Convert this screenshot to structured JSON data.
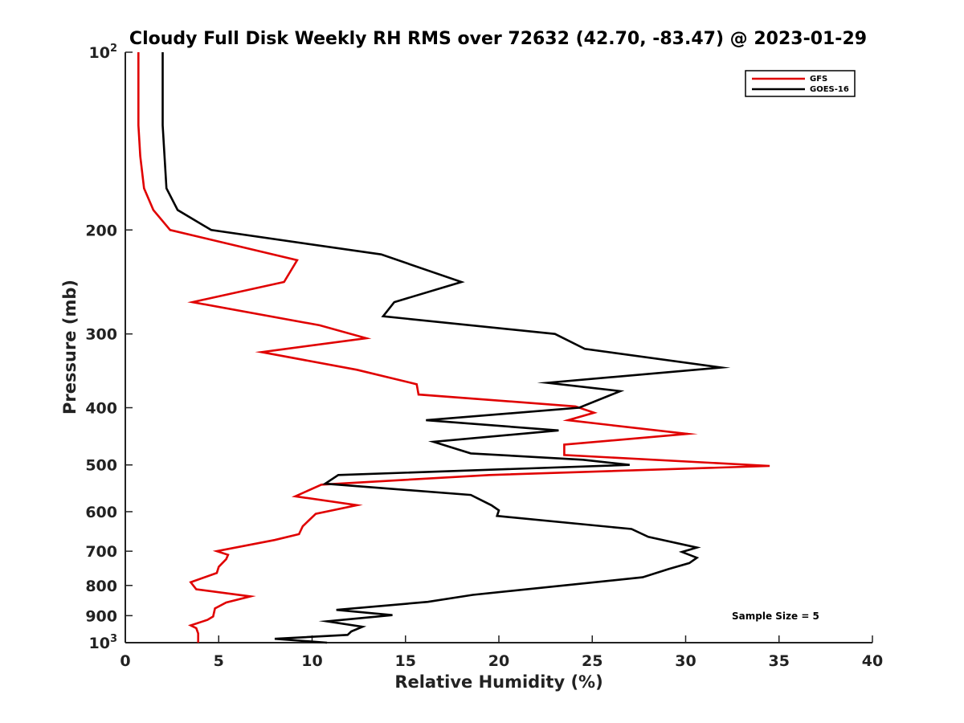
{
  "chart_data": {
    "type": "line",
    "title": "Cloudy Full Disk Weekly RH RMS over 72632 (42.70, -83.47) @ 2023-01-29",
    "xlabel": "Relative Humidity (%)",
    "ylabel": "Pressure (mb)",
    "xlim": [
      0,
      40
    ],
    "ylim": [
      100,
      1000
    ],
    "y_scale": "log",
    "y_inverted": true,
    "grid": false,
    "legend_position": "top-right",
    "x_ticks": [
      "0",
      "5",
      "10",
      "15",
      "20",
      "25",
      "30",
      "35",
      "40"
    ],
    "y_ticks": [
      {
        "value": 100,
        "base": "10",
        "exp": "2"
      },
      {
        "value": 200,
        "label": "200"
      },
      {
        "value": 300,
        "label": "300"
      },
      {
        "value": 400,
        "label": "400"
      },
      {
        "value": 500,
        "label": "500"
      },
      {
        "value": 600,
        "label": "600"
      },
      {
        "value": 700,
        "label": "700"
      },
      {
        "value": 800,
        "label": "800"
      },
      {
        "value": 900,
        "label": "900"
      },
      {
        "value": 1000,
        "base": "10",
        "exp": "3"
      }
    ],
    "annotation": "Sample Size = 5",
    "series": [
      {
        "name": "GFS",
        "color": "#e00000",
        "points": [
          [
            0.7,
            100
          ],
          [
            0.7,
            115
          ],
          [
            0.7,
            133
          ],
          [
            0.8,
            150
          ],
          [
            1.0,
            170
          ],
          [
            1.5,
            185
          ],
          [
            2.4,
            200
          ],
          [
            9.2,
            225
          ],
          [
            8.5,
            245
          ],
          [
            3.6,
            265
          ],
          [
            10.4,
            290
          ],
          [
            12.9,
            305
          ],
          [
            7.3,
            322
          ],
          [
            12.4,
            345
          ],
          [
            15.6,
            365
          ],
          [
            15.7,
            380
          ],
          [
            24.1,
            398
          ],
          [
            25.1,
            408
          ],
          [
            23.7,
            420
          ],
          [
            30.1,
            443
          ],
          [
            23.5,
            462
          ],
          [
            23.5,
            481
          ],
          [
            34.5,
            502
          ],
          [
            19.5,
            520
          ],
          [
            10.5,
            540
          ],
          [
            9.1,
            565
          ],
          [
            12.4,
            585
          ],
          [
            10.2,
            605
          ],
          [
            9.5,
            635
          ],
          [
            9.3,
            655
          ],
          [
            8.0,
            670
          ],
          [
            4.9,
            700
          ],
          [
            5.5,
            710
          ],
          [
            5.4,
            722
          ],
          [
            5.0,
            744
          ],
          [
            4.9,
            762
          ],
          [
            3.5,
            790
          ],
          [
            3.8,
            812
          ],
          [
            6.7,
            835
          ],
          [
            5.4,
            855
          ],
          [
            4.8,
            875
          ],
          [
            4.7,
            903
          ],
          [
            4.4,
            915
          ],
          [
            3.5,
            935
          ],
          [
            3.8,
            945
          ],
          [
            3.9,
            965
          ],
          [
            3.9,
            1000
          ]
        ]
      },
      {
        "name": "GOES-16",
        "color": "#000000",
        "points": [
          [
            2.0,
            100
          ],
          [
            2.0,
            115
          ],
          [
            2.0,
            133
          ],
          [
            2.1,
            150
          ],
          [
            2.2,
            170
          ],
          [
            2.8,
            185
          ],
          [
            4.6,
            200
          ],
          [
            13.7,
            220
          ],
          [
            18.0,
            245
          ],
          [
            14.4,
            265
          ],
          [
            13.8,
            280
          ],
          [
            23.0,
            300
          ],
          [
            24.6,
            318
          ],
          [
            31.9,
            342
          ],
          [
            22.6,
            363
          ],
          [
            26.5,
            375
          ],
          [
            24.3,
            400
          ],
          [
            16.1,
            420
          ],
          [
            23.2,
            437
          ],
          [
            16.5,
            457
          ],
          [
            18.5,
            478
          ],
          [
            24.5,
            490
          ],
          [
            27.0,
            500
          ],
          [
            11.4,
            520
          ],
          [
            10.7,
            538
          ],
          [
            18.5,
            562
          ],
          [
            19.6,
            585
          ],
          [
            20.0,
            597
          ],
          [
            19.9,
            610
          ],
          [
            27.1,
            642
          ],
          [
            28.0,
            662
          ],
          [
            30.6,
            690
          ],
          [
            29.8,
            702
          ],
          [
            30.6,
            718
          ],
          [
            30.2,
            733
          ],
          [
            29.1,
            750
          ],
          [
            27.7,
            775
          ],
          [
            18.6,
            830
          ],
          [
            16.2,
            853
          ],
          [
            11.3,
            880
          ],
          [
            14.3,
            898
          ],
          [
            10.8,
            920
          ],
          [
            12.7,
            940
          ],
          [
            12.1,
            957
          ],
          [
            11.9,
            970
          ],
          [
            8.0,
            985
          ],
          [
            10.8,
            1000
          ]
        ]
      }
    ]
  }
}
